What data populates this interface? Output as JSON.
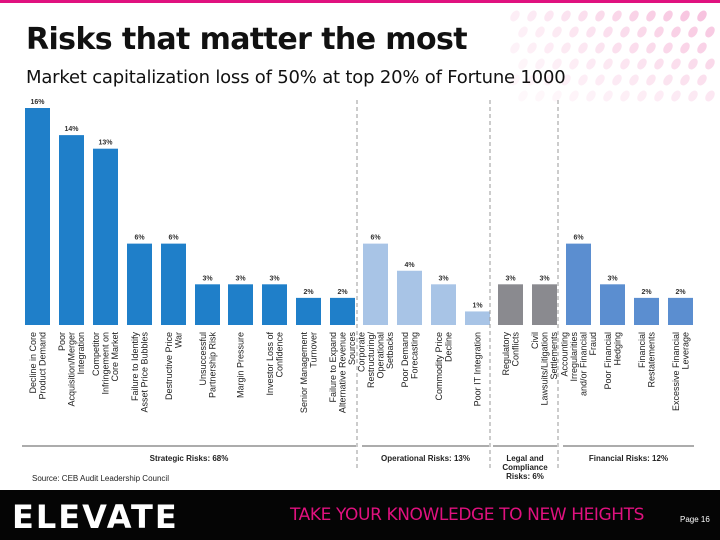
{
  "slide": {
    "title": "Risks that matter the most",
    "subtitle": "Market capitalization loss  of 50% at top 20% of Fortune 1000",
    "source": "Source: CEB Audit Leadership Council",
    "logo": "ELEVATE",
    "tagline": "TAKE YOUR KNOWLEDGE TO NEW HEIGHTS",
    "page": "Page 16",
    "accent_color": "#e0117f"
  },
  "chart_data": {
    "type": "bar",
    "categories": [
      "Decline in Core Product Demand",
      "Poor Acquisition/Merger Integration",
      "Competitor Infringement on Core Market",
      "Failure to Identify Asset Price Bubbles",
      "Destructive Price War",
      "Unsuccessful Partnership Risk",
      "Margin Pressure",
      "Investor Loss of Confidence",
      "Senior Management Turnover",
      "Failure to Expand Alternative Revenue Sources",
      "Corporate Restructuring/ Operational Setbacks",
      "Poor Demand Forecasting",
      "Commodity Price Decline",
      "Poor IT Integration",
      "Regulatory Conflicts",
      "Civil Lawsuits/Litigation Settlements",
      "Accounting Irregularities and/or Financial Fraud",
      "Poor Financial Hedging",
      "Financial Restatements",
      "Excessive Financial Leverage"
    ],
    "values": [
      16,
      14,
      13,
      6,
      6,
      3,
      3,
      3,
      2,
      2,
      6,
      4,
      3,
      1,
      3,
      3,
      6,
      3,
      2,
      2
    ],
    "value_labels": [
      "16%",
      "14%",
      "13%",
      "6%",
      "6%",
      "3%",
      "3%",
      "3%",
      "2%",
      "2%",
      "6%",
      "4%",
      "3%",
      "1%",
      "3%",
      "3%",
      "6%",
      "3%",
      "2%",
      "2%"
    ],
    "groups": [
      {
        "label": "Strategic Risks: 68%",
        "start": 0,
        "end": 9,
        "color": "#1f7fc9"
      },
      {
        "label": "Operational Risks: 13%",
        "start": 10,
        "end": 13,
        "color": "#a8c4e6"
      },
      {
        "label": "Legal and Compliance Risks: 6%",
        "start": 14,
        "end": 15,
        "color": "#8a8a8f"
      },
      {
        "label": "Financial Risks: 12%",
        "start": 16,
        "end": 19,
        "color": "#5b8ed0"
      }
    ],
    "ylim": [
      0,
      16
    ],
    "grid": false
  }
}
